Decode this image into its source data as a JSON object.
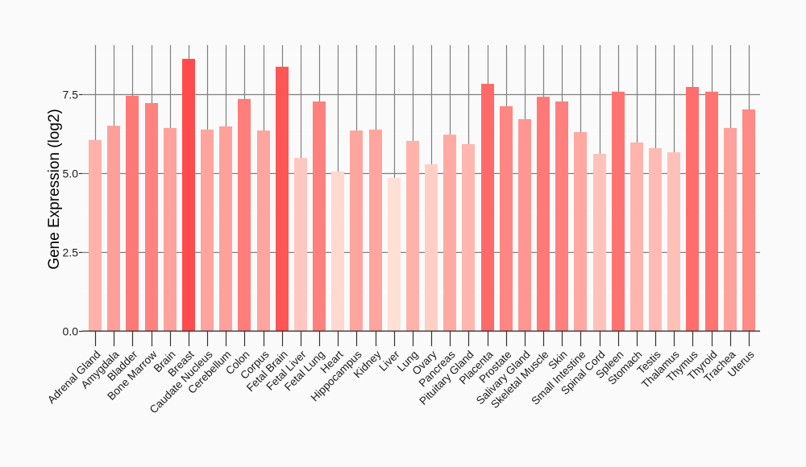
{
  "chart_data": {
    "type": "bar",
    "title": "",
    "xlabel": "",
    "ylabel": "Gene Expression (log2)",
    "ylim": [
      0,
      9.0
    ],
    "yticks": [
      0.0,
      2.5,
      5.0,
      7.5
    ],
    "ytick_labels": [
      "0.0",
      "2.5",
      "5.0",
      "7.5"
    ],
    "grid": true,
    "legend": "none",
    "categories": [
      "Adrenal Gland",
      "Amygdala",
      "Bladder",
      "Bone Marrow",
      "Brain",
      "Breast",
      "Caudate Nucleus",
      "Cerebellum",
      "Colon",
      "Corpus",
      "Fetal Brain",
      "Fetal Liver",
      "Fetal Lung",
      "Heart",
      "Hippocampus",
      "Kidney",
      "Liver",
      "Lung",
      "Ovary",
      "Pancreas",
      "Pituitary Gland",
      "Placenta",
      "Prostate",
      "Salivary Gland",
      "Skeletal Muscle",
      "Skin",
      "Small Intestine",
      "Spinal Cord",
      "Spleen",
      "Stomach",
      "Testis",
      "Thalamus",
      "Thymus",
      "Thyroid",
      "Trachea",
      "Uterus"
    ],
    "values": [
      6.05,
      6.5,
      7.45,
      7.22,
      6.43,
      8.62,
      6.38,
      6.48,
      7.35,
      6.35,
      8.37,
      5.48,
      7.27,
      5.05,
      6.35,
      6.38,
      4.85,
      6.02,
      5.28,
      6.22,
      5.92,
      7.83,
      7.12,
      6.71,
      7.42,
      7.27,
      6.3,
      5.61,
      7.58,
      5.97,
      5.79,
      5.66,
      7.73,
      7.58,
      6.43,
      7.02
    ],
    "colors": {
      "low": "#ffe0d6",
      "high": "#ff4b4b",
      "background": "#fafafa",
      "gridline": "#7f7f7f",
      "minor_gridline": "#ffffff",
      "axis": "#333333"
    }
  }
}
